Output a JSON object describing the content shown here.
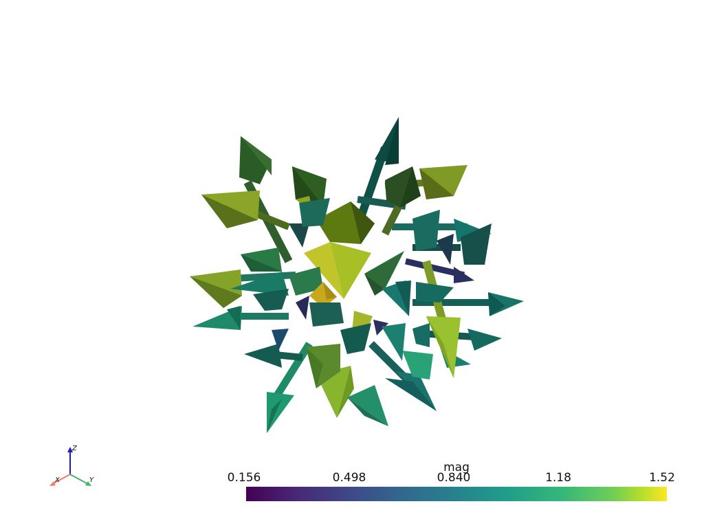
{
  "scalar_bar": {
    "title": "mag",
    "ticks": [
      "0.156",
      "0.498",
      "0.840",
      "1.18",
      "1.52"
    ]
  },
  "axes": {
    "x_label": "X",
    "y_label": "Y",
    "z_label": "Z",
    "x_color": "#f07b5f",
    "y_color": "#3fb565",
    "z_color": "#1a1ad1"
  },
  "colormap": {
    "name": "viridis",
    "min_color": "#440154",
    "max_color": "#fde725"
  }
}
